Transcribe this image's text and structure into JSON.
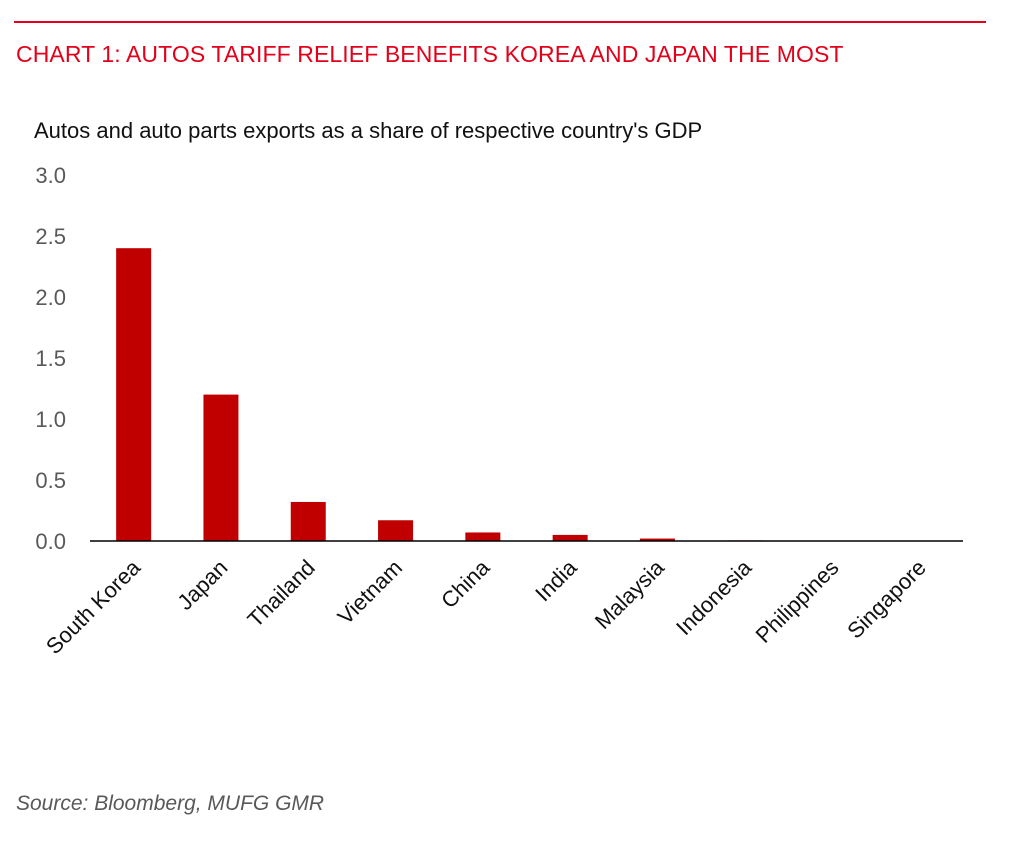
{
  "header": {
    "title": "CHART 1: AUTOS TARIFF RELIEF BENEFITS KOREA AND JAPAN THE MOST",
    "subtitle": "Autos and auto parts exports as a share of respective country's GDP"
  },
  "footer": {
    "source": "Source: Bloomberg, MUFG GMR"
  },
  "colors": {
    "accent": "#e2001a",
    "bar": "#c00000",
    "axis": "#000000",
    "tick_text": "#595959"
  },
  "chart_data": {
    "type": "bar",
    "title": "CHART 1: AUTOS TARIFF RELIEF BENEFITS KOREA AND JAPAN THE MOST",
    "subtitle": "Autos and auto parts exports as a share of respective country's GDP",
    "xlabel": "",
    "ylabel": "",
    "categories": [
      "South Korea",
      "Japan",
      "Thailand",
      "Vietnam",
      "China",
      "India",
      "Malaysia",
      "Indonesia",
      "Philippines",
      "Singapore"
    ],
    "values": [
      2.4,
      1.2,
      0.32,
      0.17,
      0.07,
      0.05,
      0.02,
      0.005,
      0.0,
      0.0
    ],
    "ylim": [
      0,
      3.0
    ],
    "yticks": [
      "0.0",
      "0.5",
      "1.0",
      "1.5",
      "2.0",
      "2.5",
      "3.0"
    ],
    "grid": false,
    "legend": "none"
  }
}
